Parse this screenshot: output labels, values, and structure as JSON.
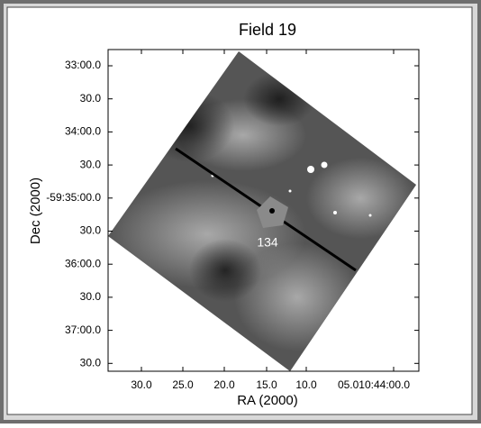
{
  "figure": {
    "title": "Field 19",
    "x_axis_label": "RA (2000)",
    "y_axis_label": "Dec (2000)",
    "x_tick_labels": [
      "30.0",
      "25.0",
      "20.0",
      "15.0",
      "10.0",
      "05.010:44:00.0"
    ],
    "y_tick_labels": [
      "33:00.0",
      "30.0",
      "34:00.0",
      "30.0",
      "-59:35:00.0",
      "30.0",
      "36:00.0",
      "30.0",
      "37:00.0",
      "30.0"
    ],
    "annotation": "134"
  }
}
